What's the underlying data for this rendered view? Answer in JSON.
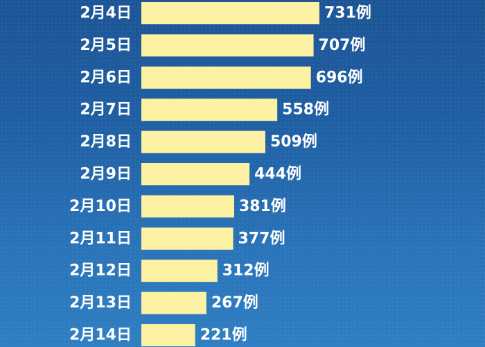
{
  "colors": {
    "bar": "#fdf1a3",
    "text": "#ffffff",
    "background_top": "#1d5596",
    "background_bottom": "#2f7fc2"
  },
  "chart_data": {
    "type": "bar",
    "orientation": "horizontal",
    "categories": [
      "2月4日",
      "2月5日",
      "2月6日",
      "2月7日",
      "2月8日",
      "2月9日",
      "2月10日",
      "2月11日",
      "2月12日",
      "2月13日",
      "2月14日"
    ],
    "values": [
      731,
      707,
      696,
      558,
      509,
      444,
      381,
      377,
      312,
      267,
      221
    ],
    "value_labels": [
      "731例",
      "707例",
      "696例",
      "558例",
      "509例",
      "444例",
      "381例",
      "377例",
      "312例",
      "267例",
      "221例"
    ],
    "title": "",
    "xlabel": "",
    "ylabel": "",
    "grid": false,
    "legend": "none"
  }
}
